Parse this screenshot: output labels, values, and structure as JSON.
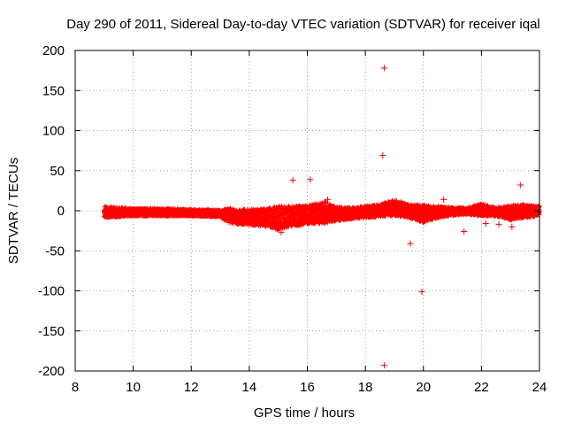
{
  "chart_data": {
    "type": "scatter",
    "title": "Day 290 of 2011, Sidereal Day-to-day VTEC variation (SDTVAR) for receiver iqal",
    "xlabel": "GPS time / hours",
    "ylabel": "SDTVAR / TECUs",
    "xlim": [
      8,
      24
    ],
    "ylim": [
      -200,
      200
    ],
    "xticks": [
      8,
      10,
      12,
      14,
      16,
      18,
      20,
      22,
      24
    ],
    "yticks": [
      -200,
      -150,
      -100,
      -50,
      0,
      50,
      100,
      150,
      200
    ],
    "grid": true,
    "marker": "+",
    "color": "#ff0000",
    "band": [
      {
        "x": 9.0,
        "lo": -9,
        "hi": 6
      },
      {
        "x": 10.0,
        "lo": -7,
        "hi": 3
      },
      {
        "x": 11.0,
        "lo": -7,
        "hi": 3
      },
      {
        "x": 12.0,
        "lo": -7,
        "hi": 2
      },
      {
        "x": 13.0,
        "lo": -8,
        "hi": 1
      },
      {
        "x": 13.3,
        "lo": -16,
        "hi": 3
      },
      {
        "x": 14.0,
        "lo": -18,
        "hi": 2
      },
      {
        "x": 14.5,
        "lo": -20,
        "hi": 3
      },
      {
        "x": 15.0,
        "lo": -24,
        "hi": 6
      },
      {
        "x": 15.5,
        "lo": -20,
        "hi": 6
      },
      {
        "x": 16.0,
        "lo": -18,
        "hi": 7
      },
      {
        "x": 16.6,
        "lo": -16,
        "hi": 12
      },
      {
        "x": 17.0,
        "lo": -13,
        "hi": 5
      },
      {
        "x": 17.5,
        "lo": -11,
        "hi": 4
      },
      {
        "x": 18.0,
        "lo": -9,
        "hi": 6
      },
      {
        "x": 18.5,
        "lo": -8,
        "hi": 8
      },
      {
        "x": 19.0,
        "lo": -7,
        "hi": 14
      },
      {
        "x": 19.5,
        "lo": -9,
        "hi": 8
      },
      {
        "x": 20.0,
        "lo": -15,
        "hi": 8
      },
      {
        "x": 20.5,
        "lo": -9,
        "hi": 6
      },
      {
        "x": 21.0,
        "lo": -6,
        "hi": 4
      },
      {
        "x": 21.5,
        "lo": -5,
        "hi": 4
      },
      {
        "x": 22.0,
        "lo": -7,
        "hi": 9
      },
      {
        "x": 22.5,
        "lo": -7,
        "hi": 4
      },
      {
        "x": 23.0,
        "lo": -12,
        "hi": 7
      },
      {
        "x": 23.5,
        "lo": -9,
        "hi": 8
      },
      {
        "x": 24.0,
        "lo": -7,
        "hi": 6
      }
    ],
    "outliers": [
      {
        "x": 18.65,
        "y": 178
      },
      {
        "x": 18.6,
        "y": 69
      },
      {
        "x": 16.1,
        "y": 39
      },
      {
        "x": 15.5,
        "y": 38
      },
      {
        "x": 23.35,
        "y": 32
      },
      {
        "x": 20.7,
        "y": 14
      },
      {
        "x": 16.7,
        "y": 14
      },
      {
        "x": 19.55,
        "y": -41
      },
      {
        "x": 19.95,
        "y": -101
      },
      {
        "x": 18.65,
        "y": -193
      },
      {
        "x": 21.4,
        "y": -26
      },
      {
        "x": 22.6,
        "y": -17
      },
      {
        "x": 23.05,
        "y": -20
      },
      {
        "x": 15.1,
        "y": -27
      },
      {
        "x": 22.15,
        "y": -16
      }
    ]
  }
}
